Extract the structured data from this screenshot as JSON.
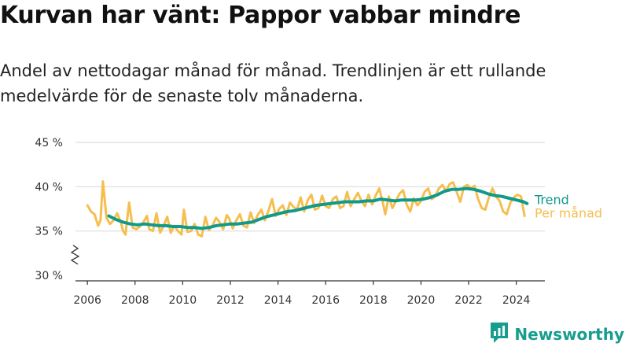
{
  "header": {
    "title": "Kurvan har vänt: Pappor vabbar mindre",
    "subtitle": "Andel av nettodagar månad för månad. Trendlinjen är ett rullande medelvärde för de senaste tolv månaderna."
  },
  "brand": {
    "name": "Newsworthy",
    "icon": "newsworthy-bar-chart-icon",
    "color": "#179d8f"
  },
  "colors": {
    "monthly": "#f6be4f",
    "trend": "#0f9a89",
    "grid": "#dddddd",
    "axis": "#333333"
  },
  "chart_data": {
    "type": "line",
    "title": "Kurvan har vänt: Pappor vabbar mindre",
    "xlabel": "",
    "ylabel": "",
    "xlim": [
      2005.5,
      2025.2
    ],
    "ylim": [
      30,
      45
    ],
    "axis_break": true,
    "grid": "horizontal",
    "x_ticks": [
      2006,
      2008,
      2010,
      2012,
      2014,
      2016,
      2018,
      2020,
      2022,
      2024
    ],
    "x_tick_labels": [
      "2006",
      "2008",
      "2010",
      "2012",
      "2014",
      "2016",
      "2018",
      "2020",
      "2022",
      "2024"
    ],
    "y_ticks": [
      30,
      35,
      40,
      45
    ],
    "y_tick_labels": [
      "30 %",
      "35 %",
      "40 %",
      "45 %"
    ],
    "series": [
      {
        "name": "Per månad",
        "color": "#f6be4f",
        "points": [
          [
            2006.0,
            37.9
          ],
          [
            2006.15,
            37.2
          ],
          [
            2006.3,
            36.9
          ],
          [
            2006.45,
            35.6
          ],
          [
            2006.55,
            36.2
          ],
          [
            2006.65,
            40.6
          ],
          [
            2006.8,
            36.5
          ],
          [
            2006.95,
            35.8
          ],
          [
            2007.1,
            36.2
          ],
          [
            2007.25,
            37.0
          ],
          [
            2007.4,
            36.0
          ],
          [
            2007.5,
            35.0
          ],
          [
            2007.6,
            34.6
          ],
          [
            2007.75,
            38.2
          ],
          [
            2007.9,
            35.4
          ],
          [
            2008.05,
            35.2
          ],
          [
            2008.2,
            35.5
          ],
          [
            2008.35,
            36.0
          ],
          [
            2008.5,
            36.7
          ],
          [
            2008.6,
            35.2
          ],
          [
            2008.75,
            35.0
          ],
          [
            2008.9,
            37.0
          ],
          [
            2009.05,
            34.8
          ],
          [
            2009.2,
            35.6
          ],
          [
            2009.35,
            36.6
          ],
          [
            2009.5,
            34.8
          ],
          [
            2009.65,
            35.6
          ],
          [
            2009.8,
            35.0
          ],
          [
            2009.95,
            34.6
          ],
          [
            2010.05,
            37.4
          ],
          [
            2010.2,
            34.9
          ],
          [
            2010.35,
            35.0
          ],
          [
            2010.5,
            35.8
          ],
          [
            2010.65,
            34.6
          ],
          [
            2010.8,
            34.4
          ],
          [
            2010.95,
            36.6
          ],
          [
            2011.1,
            35.1
          ],
          [
            2011.25,
            35.6
          ],
          [
            2011.4,
            36.5
          ],
          [
            2011.55,
            36.0
          ],
          [
            2011.7,
            35.2
          ],
          [
            2011.85,
            36.8
          ],
          [
            2011.95,
            36.4
          ],
          [
            2012.1,
            35.3
          ],
          [
            2012.25,
            36.2
          ],
          [
            2012.4,
            36.9
          ],
          [
            2012.55,
            35.6
          ],
          [
            2012.7,
            35.4
          ],
          [
            2012.85,
            37.1
          ],
          [
            2013.0,
            35.9
          ],
          [
            2013.15,
            36.8
          ],
          [
            2013.3,
            37.4
          ],
          [
            2013.45,
            36.2
          ],
          [
            2013.6,
            37.3
          ],
          [
            2013.75,
            38.6
          ],
          [
            2013.9,
            36.7
          ],
          [
            2014.05,
            37.5
          ],
          [
            2014.2,
            37.9
          ],
          [
            2014.35,
            36.8
          ],
          [
            2014.5,
            38.2
          ],
          [
            2014.65,
            37.7
          ],
          [
            2014.8,
            37.4
          ],
          [
            2014.95,
            38.8
          ],
          [
            2015.1,
            37.2
          ],
          [
            2015.25,
            38.5
          ],
          [
            2015.4,
            39.1
          ],
          [
            2015.55,
            37.4
          ],
          [
            2015.7,
            37.6
          ],
          [
            2015.85,
            39.0
          ],
          [
            2016.0,
            37.8
          ],
          [
            2016.15,
            37.6
          ],
          [
            2016.3,
            38.6
          ],
          [
            2016.45,
            38.9
          ],
          [
            2016.6,
            37.6
          ],
          [
            2016.75,
            37.8
          ],
          [
            2016.9,
            39.4
          ],
          [
            2017.05,
            37.8
          ],
          [
            2017.2,
            38.6
          ],
          [
            2017.35,
            39.3
          ],
          [
            2017.5,
            38.4
          ],
          [
            2017.65,
            37.8
          ],
          [
            2017.8,
            39.1
          ],
          [
            2017.95,
            38.0
          ],
          [
            2018.1,
            39.0
          ],
          [
            2018.25,
            39.8
          ],
          [
            2018.4,
            38.2
          ],
          [
            2018.5,
            36.9
          ],
          [
            2018.65,
            38.9
          ],
          [
            2018.8,
            37.6
          ],
          [
            2018.95,
            38.4
          ],
          [
            2019.1,
            39.2
          ],
          [
            2019.25,
            39.6
          ],
          [
            2019.4,
            38.0
          ],
          [
            2019.55,
            37.2
          ],
          [
            2019.7,
            38.7
          ],
          [
            2019.85,
            37.9
          ],
          [
            2020.0,
            38.4
          ],
          [
            2020.15,
            39.4
          ],
          [
            2020.3,
            39.8
          ],
          [
            2020.45,
            38.6
          ],
          [
            2020.6,
            38.9
          ],
          [
            2020.75,
            39.8
          ],
          [
            2020.9,
            40.2
          ],
          [
            2021.05,
            39.5
          ],
          [
            2021.2,
            40.3
          ],
          [
            2021.35,
            40.5
          ],
          [
            2021.5,
            39.4
          ],
          [
            2021.65,
            38.3
          ],
          [
            2021.8,
            40.0
          ],
          [
            2021.95,
            40.2
          ],
          [
            2022.1,
            39.8
          ],
          [
            2022.25,
            40.1
          ],
          [
            2022.4,
            38.6
          ],
          [
            2022.55,
            37.6
          ],
          [
            2022.7,
            37.4
          ],
          [
            2022.85,
            38.8
          ],
          [
            2023.0,
            39.8
          ],
          [
            2023.15,
            38.9
          ],
          [
            2023.3,
            38.4
          ],
          [
            2023.45,
            37.2
          ],
          [
            2023.6,
            36.9
          ],
          [
            2023.75,
            38.2
          ],
          [
            2023.9,
            38.8
          ],
          [
            2024.05,
            39.1
          ],
          [
            2024.2,
            38.9
          ],
          [
            2024.35,
            36.7
          ]
        ]
      },
      {
        "name": "Trend",
        "color": "#0f9a89",
        "points": [
          [
            2006.9,
            36.7
          ],
          [
            2007.2,
            36.3
          ],
          [
            2007.5,
            36.0
          ],
          [
            2007.8,
            35.8
          ],
          [
            2008.1,
            35.7
          ],
          [
            2008.4,
            35.8
          ],
          [
            2008.7,
            35.7
          ],
          [
            2009.0,
            35.6
          ],
          [
            2009.3,
            35.6
          ],
          [
            2009.6,
            35.5
          ],
          [
            2009.9,
            35.5
          ],
          [
            2010.2,
            35.4
          ],
          [
            2010.5,
            35.4
          ],
          [
            2010.8,
            35.3
          ],
          [
            2011.1,
            35.4
          ],
          [
            2011.4,
            35.6
          ],
          [
            2011.7,
            35.7
          ],
          [
            2012.0,
            35.8
          ],
          [
            2012.3,
            35.8
          ],
          [
            2012.6,
            35.9
          ],
          [
            2012.9,
            36.0
          ],
          [
            2013.2,
            36.3
          ],
          [
            2013.5,
            36.6
          ],
          [
            2013.8,
            36.8
          ],
          [
            2014.1,
            37.0
          ],
          [
            2014.4,
            37.2
          ],
          [
            2014.7,
            37.3
          ],
          [
            2015.0,
            37.5
          ],
          [
            2015.3,
            37.7
          ],
          [
            2015.6,
            37.9
          ],
          [
            2015.9,
            38.0
          ],
          [
            2016.2,
            38.1
          ],
          [
            2016.5,
            38.2
          ],
          [
            2016.8,
            38.3
          ],
          [
            2017.1,
            38.3
          ],
          [
            2017.4,
            38.3
          ],
          [
            2017.7,
            38.4
          ],
          [
            2018.0,
            38.4
          ],
          [
            2018.3,
            38.6
          ],
          [
            2018.6,
            38.5
          ],
          [
            2018.9,
            38.4
          ],
          [
            2019.2,
            38.5
          ],
          [
            2019.5,
            38.5
          ],
          [
            2019.8,
            38.5
          ],
          [
            2020.1,
            38.6
          ],
          [
            2020.4,
            38.8
          ],
          [
            2020.7,
            39.1
          ],
          [
            2021.0,
            39.5
          ],
          [
            2021.3,
            39.7
          ],
          [
            2021.6,
            39.7
          ],
          [
            2021.9,
            39.8
          ],
          [
            2022.2,
            39.7
          ],
          [
            2022.5,
            39.5
          ],
          [
            2022.8,
            39.2
          ],
          [
            2023.1,
            39.0
          ],
          [
            2023.4,
            38.9
          ],
          [
            2023.7,
            38.7
          ],
          [
            2024.0,
            38.5
          ],
          [
            2024.3,
            38.3
          ],
          [
            2024.45,
            38.1
          ]
        ]
      }
    ],
    "legend": "end-of-line labels at right"
  }
}
